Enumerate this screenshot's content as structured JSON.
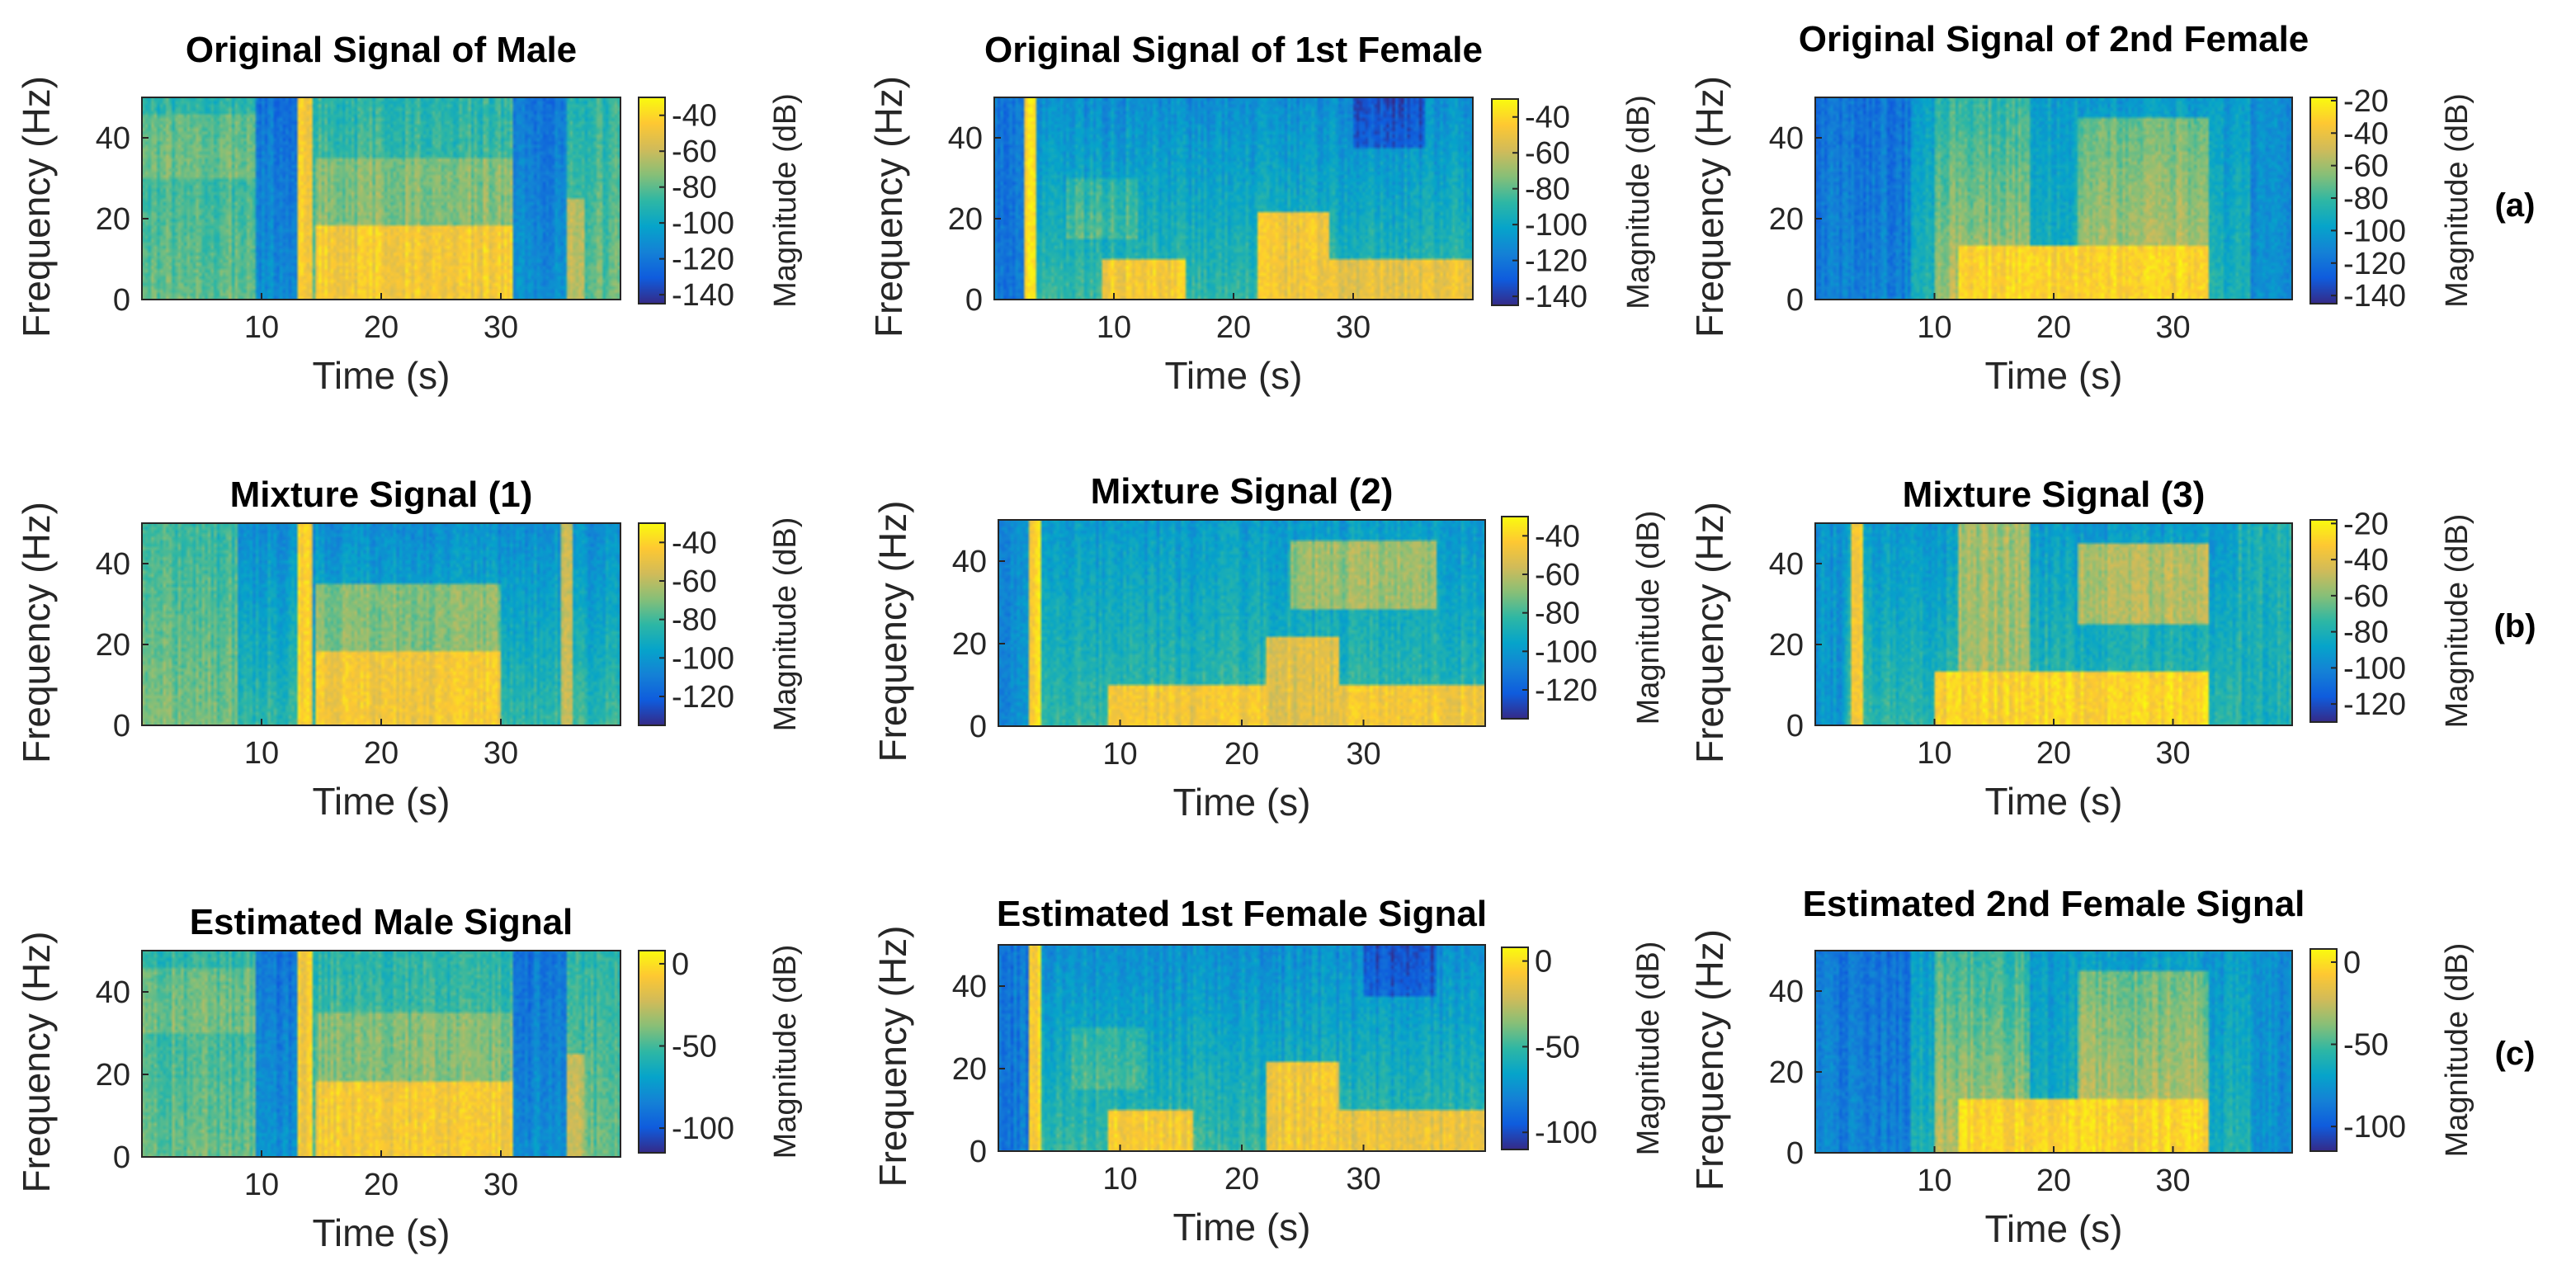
{
  "chart_data": [
    {
      "type": "heatmap",
      "title": "Original Signal of Male",
      "xlabel": "Time (s)",
      "ylabel": "Frequency (Hz)",
      "colorbar_label": "Magnitude (dB)",
      "xlim": [
        0,
        40
      ],
      "ylim": [
        0,
        50
      ],
      "clim": [
        -145,
        -30
      ],
      "xticks": [
        10,
        20,
        30
      ],
      "yticks": [
        0,
        20,
        40
      ],
      "cticks": [
        -140,
        -120,
        -100,
        -80,
        -60,
        -40
      ],
      "colormap": "parula",
      "signal": "male",
      "row": "(a)"
    },
    {
      "type": "heatmap",
      "title": "Original Signal of 1st Female",
      "xlabel": "Time (s)",
      "ylabel": "Frequency (Hz)",
      "colorbar_label": "Magnitude (dB)",
      "xlim": [
        0,
        40
      ],
      "ylim": [
        0,
        50
      ],
      "clim": [
        -145,
        -30
      ],
      "xticks": [
        10,
        20,
        30
      ],
      "yticks": [
        0,
        20,
        40
      ],
      "cticks": [
        -140,
        -120,
        -100,
        -80,
        -60,
        -40
      ],
      "colormap": "parula",
      "signal": "female1",
      "row": "(a)"
    },
    {
      "type": "heatmap",
      "title": "Original Signal of 2nd Female",
      "xlabel": "Time (s)",
      "ylabel": "Frequency (Hz)",
      "colorbar_label": "Magnitude (dB)",
      "xlim": [
        0,
        40
      ],
      "ylim": [
        0,
        50
      ],
      "clim": [
        -145,
        -18
      ],
      "xticks": [
        10,
        20,
        30
      ],
      "yticks": [
        0,
        20,
        40
      ],
      "cticks": [
        -140,
        -120,
        -100,
        -80,
        -60,
        -40,
        -20
      ],
      "colormap": "parula",
      "signal": "female2",
      "row": "(a)"
    },
    {
      "type": "heatmap",
      "title": "Mixture Signal (1)",
      "xlabel": "Time (s)",
      "ylabel": "Frequency (Hz)",
      "colorbar_label": "Magnitude (dB)",
      "xlim": [
        0,
        40
      ],
      "ylim": [
        0,
        50
      ],
      "clim": [
        -135,
        -30
      ],
      "xticks": [
        10,
        20,
        30
      ],
      "yticks": [
        0,
        20,
        40
      ],
      "cticks": [
        -120,
        -100,
        -80,
        -60,
        -40
      ],
      "colormap": "parula",
      "signal": "mix1",
      "row": "(b)"
    },
    {
      "type": "heatmap",
      "title": "Mixture Signal (2)",
      "xlabel": "Time (s)",
      "ylabel": "Frequency (Hz)",
      "colorbar_label": "Magnitude (dB)",
      "xlim": [
        0,
        40
      ],
      "ylim": [
        0,
        50
      ],
      "clim": [
        -135,
        -30
      ],
      "xticks": [
        10,
        20,
        30
      ],
      "yticks": [
        0,
        20,
        40
      ],
      "cticks": [
        -120,
        -100,
        -80,
        -60,
        -40
      ],
      "colormap": "parula",
      "signal": "mix2",
      "row": "(b)"
    },
    {
      "type": "heatmap",
      "title": "Mixture Signal (3)",
      "xlabel": "Time (s)",
      "ylabel": "Frequency (Hz)",
      "colorbar_label": "Magnitude (dB)",
      "xlim": [
        0,
        40
      ],
      "ylim": [
        0,
        50
      ],
      "clim": [
        -130,
        -18
      ],
      "xticks": [
        10,
        20,
        30
      ],
      "yticks": [
        0,
        20,
        40
      ],
      "cticks": [
        -120,
        -100,
        -80,
        -60,
        -40,
        -20
      ],
      "colormap": "parula",
      "signal": "mix3",
      "row": "(b)"
    },
    {
      "type": "heatmap",
      "title": "Estimated Male Signal",
      "xlabel": "Time (s)",
      "ylabel": "Frequency (Hz)",
      "colorbar_label": "Magnitude (dB)",
      "xlim": [
        0,
        40
      ],
      "ylim": [
        0,
        50
      ],
      "clim": [
        -115,
        8
      ],
      "xticks": [
        10,
        20,
        30
      ],
      "yticks": [
        0,
        20,
        40
      ],
      "cticks": [
        -100,
        -50,
        0
      ],
      "colormap": "parula",
      "signal": "male",
      "row": "(c)"
    },
    {
      "type": "heatmap",
      "title": "Estimated 1st Female Signal",
      "xlabel": "Time (s)",
      "ylabel": "Frequency (Hz)",
      "colorbar_label": "Magnitude (dB)",
      "xlim": [
        0,
        40
      ],
      "ylim": [
        0,
        50
      ],
      "clim": [
        -110,
        8
      ],
      "xticks": [
        10,
        20,
        30
      ],
      "yticks": [
        0,
        20,
        40
      ],
      "cticks": [
        -100,
        -50,
        0
      ],
      "colormap": "parula",
      "signal": "female1",
      "row": "(c)"
    },
    {
      "type": "heatmap",
      "title": "Estimated 2nd Female Signal",
      "xlabel": "Time (s)",
      "ylabel": "Frequency (Hz)",
      "colorbar_label": "Magnitude (dB)",
      "xlim": [
        0,
        40
      ],
      "ylim": [
        0,
        50
      ],
      "clim": [
        -115,
        8
      ],
      "xticks": [
        10,
        20,
        30
      ],
      "yticks": [
        0,
        20,
        40
      ],
      "cticks": [
        -100,
        -50,
        0
      ],
      "colormap": "parula",
      "signal": "female2",
      "row": "(c)"
    }
  ],
  "row_labels": [
    "(a)",
    "(b)",
    "(c)"
  ],
  "colors": {
    "parula": [
      "#352a87",
      "#0f5cdd",
      "#1481d6",
      "#06a4ca",
      "#2eb7a4",
      "#87bf77",
      "#d1bb59",
      "#fec832",
      "#f9fb0e"
    ]
  }
}
